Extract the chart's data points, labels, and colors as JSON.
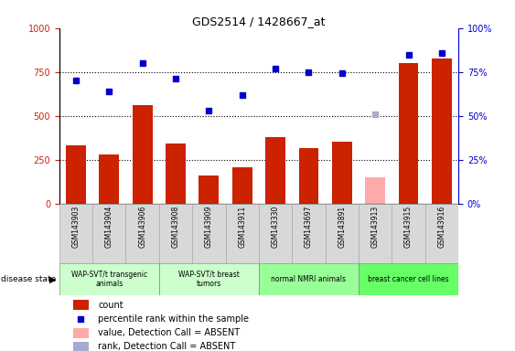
{
  "title": "GDS2514 / 1428667_at",
  "samples": [
    "GSM143903",
    "GSM143904",
    "GSM143906",
    "GSM143908",
    "GSM143909",
    "GSM143911",
    "GSM143330",
    "GSM143697",
    "GSM143891",
    "GSM143913",
    "GSM143915",
    "GSM143916"
  ],
  "counts": [
    330,
    280,
    560,
    340,
    160,
    205,
    380,
    315,
    355,
    150,
    800,
    825
  ],
  "absent_count_idx": [
    9
  ],
  "percentile_ranks": [
    70,
    64,
    80,
    71,
    53,
    62,
    77,
    75,
    74.5,
    51,
    84.5,
    86
  ],
  "absent_rank_idx": [
    9
  ],
  "group_defs": [
    {
      "start": 0,
      "end": 2,
      "label": "WAP-SVT/t transgenic\nanimals",
      "color": "#ccffcc"
    },
    {
      "start": 3,
      "end": 5,
      "label": "WAP-SVT/t breast\ntumors",
      "color": "#ccffcc"
    },
    {
      "start": 6,
      "end": 8,
      "label": "normal NMRI animals",
      "color": "#99ff99"
    },
    {
      "start": 9,
      "end": 11,
      "label": "breast cancer cell lines",
      "color": "#66ff66"
    }
  ],
  "ylim_left": [
    0,
    1000
  ],
  "ylim_right": [
    0,
    100
  ],
  "bar_color": "#cc2200",
  "absent_bar_color": "#ffaaaa",
  "dot_color": "#0000cc",
  "absent_dot_color": "#aaaacc",
  "yticks_left": [
    0,
    250,
    500,
    750,
    1000
  ],
  "yticks_right": [
    0,
    25,
    50,
    75,
    100
  ],
  "sample_bg": "#d8d8d8",
  "legend_items": [
    {
      "type": "rect",
      "color": "#cc2200",
      "label": "count"
    },
    {
      "type": "square",
      "color": "#0000cc",
      "label": "percentile rank within the sample"
    },
    {
      "type": "rect",
      "color": "#ffaaaa",
      "label": "value, Detection Call = ABSENT"
    },
    {
      "type": "rect",
      "color": "#aaaacc",
      "label": "rank, Detection Call = ABSENT"
    }
  ]
}
